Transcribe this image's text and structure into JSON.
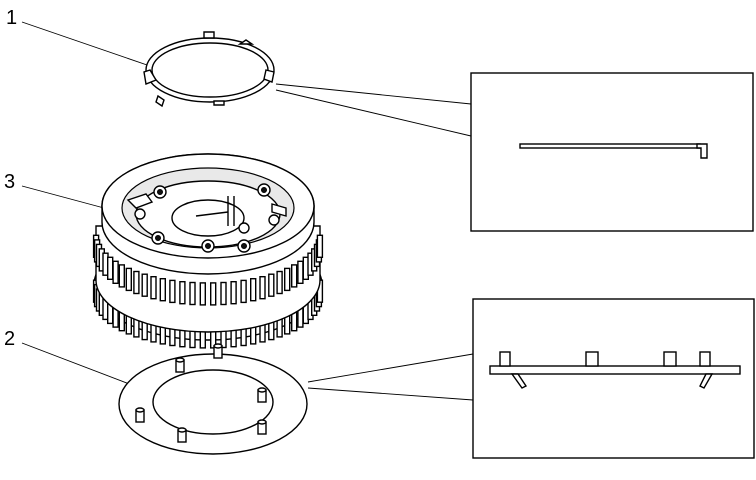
{
  "diagram": {
    "callouts": [
      {
        "id": "1"
      },
      {
        "id": "3"
      },
      {
        "id": "2"
      }
    ]
  }
}
